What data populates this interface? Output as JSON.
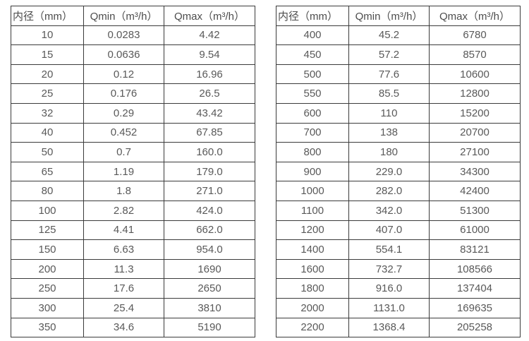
{
  "colors": {
    "border": "#3b3b3b",
    "text": "#595959",
    "background": "#ffffff"
  },
  "tables": [
    {
      "headers": [
        "内径（mm）",
        "Qmin（m³/h）",
        "Qmax（m³/h）"
      ],
      "rows": [
        [
          "10",
          "0.0283",
          "4.42"
        ],
        [
          "15",
          "0.0636",
          "9.54"
        ],
        [
          "20",
          "0.12",
          "16.96"
        ],
        [
          "25",
          "0.176",
          "26.5"
        ],
        [
          "32",
          "0.29",
          "43.42"
        ],
        [
          "40",
          "0.452",
          "67.85"
        ],
        [
          "50",
          "0.7",
          "160.0"
        ],
        [
          "65",
          "1.19",
          "179.0"
        ],
        [
          "80",
          "1.8",
          "271.0"
        ],
        [
          "100",
          "2.82",
          "424.0"
        ],
        [
          "125",
          "4.41",
          "662.0"
        ],
        [
          "150",
          "6.63",
          "954.0"
        ],
        [
          "200",
          "11.3",
          "1690"
        ],
        [
          "250",
          "17.6",
          "2650"
        ],
        [
          "300",
          "25.4",
          "3810"
        ],
        [
          "350",
          "34.6",
          "5190"
        ]
      ]
    },
    {
      "headers": [
        "内径（mm）",
        "Qmin（m³/h）",
        "Qmax（m³/h）"
      ],
      "rows": [
        [
          "400",
          "45.2",
          "6780"
        ],
        [
          "450",
          "57.2",
          "8570"
        ],
        [
          "500",
          "77.6",
          "10600"
        ],
        [
          "550",
          "85.5",
          "12800"
        ],
        [
          "600",
          "110",
          "15200"
        ],
        [
          "700",
          "138",
          "20700"
        ],
        [
          "800",
          "180",
          "27100"
        ],
        [
          "900",
          "229.0",
          "34300"
        ],
        [
          "1000",
          "282.0",
          "42400"
        ],
        [
          "1100",
          "342.0",
          "51300"
        ],
        [
          "1200",
          "407.0",
          "61000"
        ],
        [
          "1400",
          "554.1",
          "83121"
        ],
        [
          "1600",
          "732.7",
          "108566"
        ],
        [
          "1800",
          "916.0",
          "137404"
        ],
        [
          "2000",
          "1131.0",
          "169635"
        ],
        [
          "2200",
          "1368.4",
          "205258"
        ]
      ]
    }
  ]
}
